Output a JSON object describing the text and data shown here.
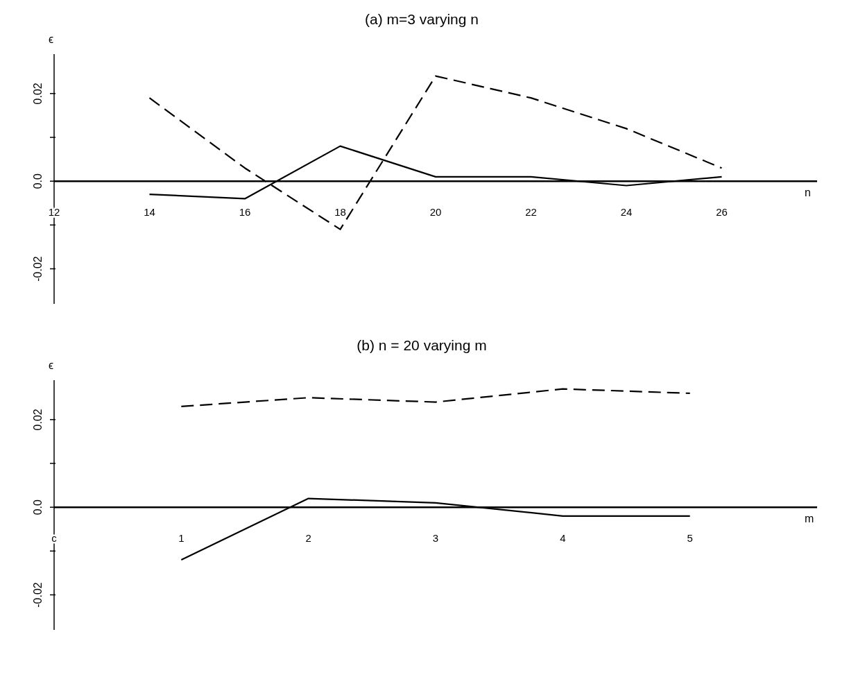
{
  "chart_data": [
    {
      "type": "line",
      "title": "(a)  m=3   varying n",
      "xlabel": "n",
      "ylabel": "ϵ",
      "x": [
        14,
        16,
        18,
        20,
        22,
        24,
        26
      ],
      "series": [
        {
          "color": "#000000",
          "line_style": "dashed",
          "values": [
            0.019,
            0.003,
            -0.011,
            0.024,
            0.019,
            0.012,
            0.003
          ]
        },
        {
          "color": "#000000",
          "line_style": "solid",
          "values": [
            -0.003,
            -0.004,
            0.008,
            0.001,
            0.001,
            -0.001,
            0.001
          ]
        }
      ],
      "xlim": [
        12,
        28
      ],
      "xticks": [
        12,
        14,
        16,
        18,
        20,
        22,
        24,
        26
      ],
      "ylim": [
        -0.028,
        0.029
      ],
      "yticks": [
        {
          "value": -0.02,
          "label": "-0.02"
        },
        {
          "value": -0.01,
          "label": null
        },
        {
          "value": 0,
          "label": "0.0"
        },
        {
          "value": 0.01,
          "label": null
        },
        0.02
      ],
      "grid": false,
      "legend": false,
      "marker": "none"
    },
    {
      "type": "line",
      "title": "(b)  n = 20   varying m",
      "xlabel": "m",
      "ylabel": "ϵ",
      "x": [
        1,
        2,
        3,
        4,
        5
      ],
      "series": [
        {
          "color": "#000000",
          "line_style": "dashed",
          "values": [
            0.023,
            0.025,
            0.024,
            0.027,
            0.026
          ]
        },
        {
          "color": "#000000",
          "line_style": "solid",
          "values": [
            -0.012,
            0.002,
            0.001,
            -0.002,
            -0.002
          ]
        }
      ],
      "xlim": [
        0,
        6
      ],
      "xticks": [
        {
          "value": 0,
          "label": "c"
        },
        1,
        2,
        3,
        4,
        5
      ],
      "ylim": [
        -0.028,
        0.029
      ],
      "yticks": [
        {
          "value": -0.02,
          "label": "-0.02"
        },
        {
          "value": -0.01,
          "label": null
        },
        {
          "value": 0,
          "label": "0.0"
        },
        {
          "value": 0.01,
          "label": null
        },
        0.02
      ],
      "grid": false,
      "legend": false,
      "marker": "none"
    }
  ]
}
